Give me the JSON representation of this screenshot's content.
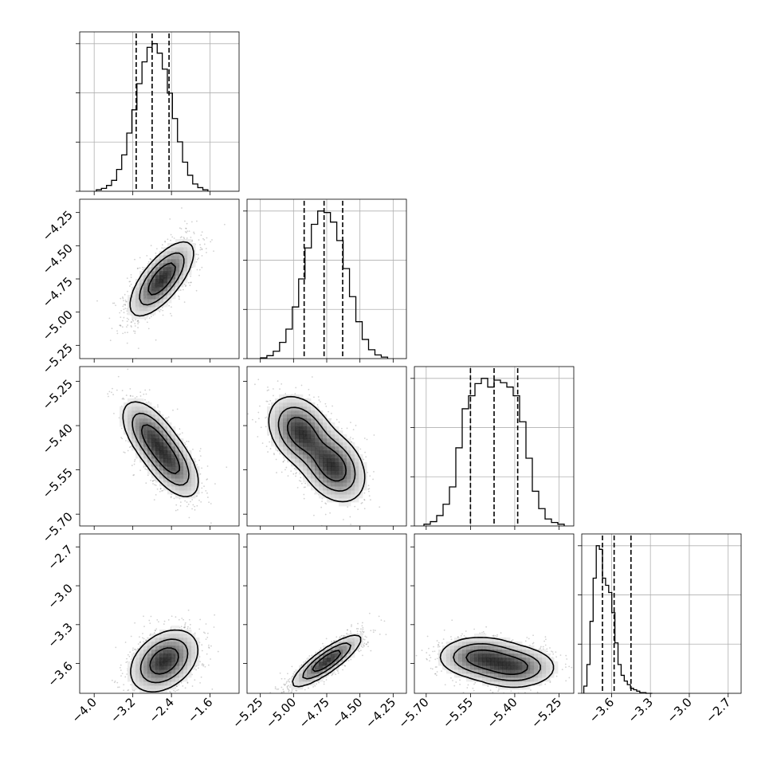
{
  "chart_data": {
    "type": "corner",
    "params": [
      {
        "range": [
          -4.3,
          -1.0
        ],
        "ticks": [
          -4.0,
          -3.2,
          -2.4,
          -1.6
        ],
        "tick_labels": [
          "−4.0",
          "−3.2",
          "−2.4",
          "−1.6"
        ],
        "mean": -2.8,
        "std": 0.35,
        "quantiles": [
          -3.13,
          -2.8,
          -2.45
        ]
      },
      {
        "range": [
          -5.35,
          -4.15
        ],
        "ticks": [
          -5.25,
          -5.0,
          -4.75,
          -4.5,
          -4.25
        ],
        "tick_labels": [
          "−5.25",
          "−5.00",
          "−4.75",
          "−4.50",
          "−4.25"
        ],
        "mean": -4.77,
        "std": 0.145,
        "quantiles": [
          -4.92,
          -4.77,
          -4.63
        ]
      },
      {
        "range": [
          -5.74,
          -5.2
        ],
        "ticks": [
          -5.7,
          -5.55,
          -5.4,
          -5.25
        ],
        "tick_labels": [
          "−5.70",
          "−5.55",
          "−5.40",
          "−5.25"
        ],
        "mean": -5.47,
        "std": 0.072,
        "quantiles": [
          -5.55,
          -5.47,
          -5.39
        ]
      },
      {
        "range": [
          -3.83,
          -2.6
        ],
        "ticks": [
          -3.6,
          -3.3,
          -3.0,
          -2.7
        ],
        "tick_labels": [
          "−3.6",
          "−3.3",
          "−3.0",
          "−2.7"
        ],
        "mean": -3.55,
        "std": 0.08,
        "quantiles": [
          -3.67,
          -3.58,
          -3.45
        ]
      }
    ],
    "y_ticks": [
      null,
      {
        "ticks": [
          -5.25,
          -5.0,
          -4.75,
          -4.5,
          -4.25
        ],
        "tick_labels": [
          "−5.25",
          "−5.00",
          "−4.75",
          "−4.50",
          "−4.25"
        ]
      },
      {
        "ticks": [
          -5.7,
          -5.55,
          -5.4,
          -5.25
        ],
        "tick_labels": [
          "−5.70",
          "−5.55",
          "−5.40",
          "−5.25"
        ]
      },
      {
        "ticks": [
          -3.6,
          -3.3,
          -3.0,
          -2.7
        ],
        "tick_labels": [
          "−3.6",
          "−3.3",
          "−3.0",
          "−2.7"
        ]
      }
    ],
    "histograms": [
      [
        2,
        4,
        8,
        15,
        30,
        50,
        80,
        112,
        148,
        178,
        198,
        203,
        190,
        168,
        135,
        100,
        68,
        40,
        22,
        10,
        5,
        2
      ],
      [
        1,
        4,
        10,
        22,
        40,
        70,
        108,
        150,
        182,
        200,
        198,
        185,
        160,
        122,
        84,
        50,
        26,
        12,
        5,
        2
      ],
      [
        2,
        5,
        12,
        25,
        45,
        90,
        135,
        150,
        164,
        170,
        160,
        168,
        165,
        160,
        150,
        120,
        78,
        40,
        20,
        8,
        4,
        2
      ],
      [
        10,
        40,
        100,
        160,
        205,
        200,
        160,
        150,
        140,
        112,
        70,
        40,
        25,
        17,
        12,
        7,
        5,
        3,
        1,
        1,
        0,
        0
      ]
    ],
    "panel_2d": [
      {
        "row": 1,
        "col": 0,
        "shape": "ellipse",
        "cx": -2.6,
        "cy": -4.75,
        "sx": 0.33,
        "sy": 0.14,
        "corr": 0.7
      },
      {
        "row": 2,
        "col": 0,
        "shape": "bimodal",
        "modes": [
          {
            "x": -2.85,
            "y": -5.43
          },
          {
            "x": -2.4,
            "y": -5.53
          }
        ],
        "sx": 0.3,
        "sy": 0.06,
        "corr": -0.55
      },
      {
        "row": 2,
        "col": 1,
        "shape": "bimodal",
        "modes": [
          {
            "x": -4.95,
            "y": -5.42
          },
          {
            "x": -4.7,
            "y": -5.54
          }
        ],
        "sx": 0.12,
        "sy": 0.06,
        "corr": -0.3
      },
      {
        "row": 3,
        "col": 0,
        "shape": "ellipse",
        "cx": -2.55,
        "cy": -3.58,
        "sx": 0.35,
        "sy": 0.12,
        "corr": 0.35
      },
      {
        "row": 3,
        "col": 1,
        "shape": "ellipse",
        "cx": -4.75,
        "cy": -3.58,
        "sx": 0.13,
        "sy": 0.1,
        "corr": 0.85
      },
      {
        "row": 3,
        "col": 2,
        "shape": "bimodal",
        "modes": [
          {
            "x": -5.52,
            "y": -3.55
          },
          {
            "x": -5.4,
            "y": -3.63
          }
        ],
        "sx": 0.07,
        "sy": 0.08,
        "corr": 0.0
      }
    ]
  }
}
